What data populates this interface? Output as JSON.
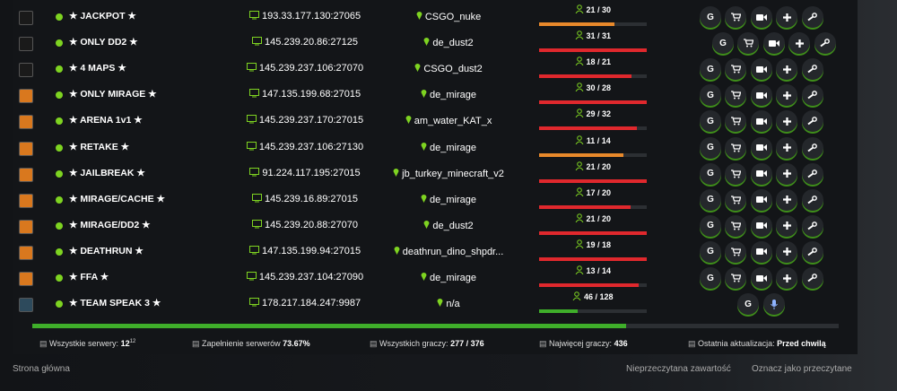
{
  "button_label": "G",
  "rows": [
    {
      "name": "★ JACKPOT ★",
      "ip": "193.33.177.130:27065",
      "map": "CSGO_nuke",
      "players": 21,
      "slots": 30,
      "players_label": "21 / 30",
      "bar_color": "#e8892b",
      "icon_color": "#1a1a1a"
    },
    {
      "name": "★ ONLY DD2 ★",
      "ip": "145.239.20.86:27125",
      "map": "de_dust2",
      "players": 31,
      "slots": 31,
      "players_label": "31 / 31",
      "bar_color": "#e0282d",
      "icon_color": "#1a1a1a"
    },
    {
      "name": "★ 4 MAPS ★",
      "ip": "145.239.237.106:27070",
      "map": "CSGO_dust2",
      "players": 18,
      "slots": 21,
      "players_label": "18 / 21",
      "bar_color": "#e0282d",
      "icon_color": "#1a1a1a"
    },
    {
      "name": "★ ONLY MIRAGE ★",
      "ip": "147.135.199.68:27015",
      "map": "de_mirage",
      "players": 30,
      "slots": 28,
      "players_label": "30 / 28",
      "bar_color": "#e0282d",
      "icon_color": "#d9781e"
    },
    {
      "name": "★ ARENA 1v1 ★",
      "ip": "145.239.237.170:27015",
      "map": "am_water_KAT_x",
      "players": 29,
      "slots": 32,
      "players_label": "29 / 32",
      "bar_color": "#e0282d",
      "icon_color": "#d9781e"
    },
    {
      "name": "★ RETAKE ★",
      "ip": "145.239.237.106:27130",
      "map": "de_mirage",
      "players": 11,
      "slots": 14,
      "players_label": "11 / 14",
      "bar_color": "#e8892b",
      "icon_color": "#d9781e"
    },
    {
      "name": "★ JAILBREAK ★",
      "ip": "91.224.117.195:27015",
      "map": "jb_turkey_minecraft_v2",
      "players": 21,
      "slots": 20,
      "players_label": "21 / 20",
      "bar_color": "#e0282d",
      "icon_color": "#d9781e"
    },
    {
      "name": "★ MIRAGE/CACHE ★",
      "ip": "145.239.16.89:27015",
      "map": "de_mirage",
      "players": 17,
      "slots": 20,
      "players_label": "17 / 20",
      "bar_color": "#e0282d",
      "icon_color": "#d9781e"
    },
    {
      "name": "★ MIRAGE/DD2 ★",
      "ip": "145.239.20.88:27070",
      "map": "de_dust2",
      "players": 21,
      "slots": 20,
      "players_label": "21 / 20",
      "bar_color": "#e0282d",
      "icon_color": "#d9781e"
    },
    {
      "name": "★ DEATHRUN ★",
      "ip": "147.135.199.94:27015",
      "map": "deathrun_dino_shpdr...",
      "players": 19,
      "slots": 18,
      "players_label": "19 / 18",
      "bar_color": "#e0282d",
      "icon_color": "#d9781e"
    },
    {
      "name": "★ FFA ★",
      "ip": "145.239.237.104:27090",
      "map": "de_mirage",
      "players": 13,
      "slots": 14,
      "players_label": "13 / 14",
      "bar_color": "#e0282d",
      "icon_color": "#d9781e"
    },
    {
      "name": "★ TEAM SPEAK 3 ★",
      "ip": "178.217.184.247:9987",
      "map": "n/a",
      "players": 46,
      "slots": 128,
      "players_label": "46 / 128",
      "bar_color": "#3fae2a",
      "icon_color": "#2d4a5c"
    }
  ],
  "summary": {
    "fill_percent": 73.67,
    "fill_color": "#3fae2a",
    "servers_label": "Wszystkie serwery:",
    "servers_value": "12",
    "servers_sup": "12",
    "usage_label": "Zapełnienie serwerów",
    "usage_value": "73.67%",
    "players_label": "Wszystkich graczy:",
    "players_value": "277 / 376",
    "peak_label": "Najwięcej graczy:",
    "peak_value": "436",
    "update_label": "Ostatnia aktualizacja:",
    "update_value": "Przed chwilą"
  },
  "footer": {
    "home": "Strona główna",
    "unread": "Nieprzeczytana zawartość",
    "mark_read": "Oznacz jako przeczytane"
  }
}
